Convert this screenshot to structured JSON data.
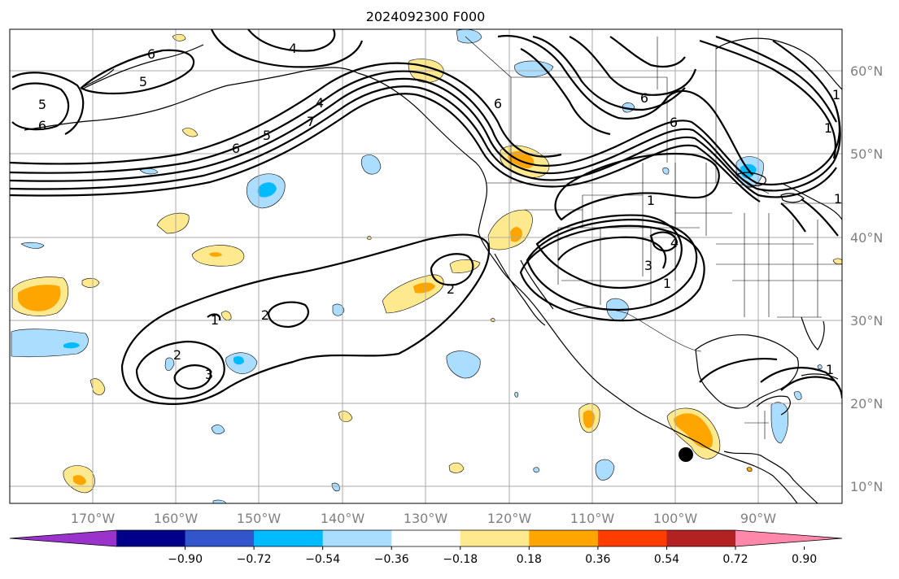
{
  "title": "2024092300 F000",
  "lat_labels": [
    "60°N",
    "50°N",
    "40°N",
    "30°N",
    "20°N",
    "10°N"
  ],
  "lon_labels": [
    "170°W",
    "160°W",
    "150°W",
    "140°W",
    "130°W",
    "120°W",
    "110°W",
    "100°W",
    "90°W"
  ],
  "colorbar": {
    "colors": [
      "#9933cc",
      "#000088",
      "#3355cc",
      "#00bbff",
      "#aaddff",
      "#ffffff",
      "#ffe98f",
      "#ffa500",
      "#ff3d00",
      "#b22222",
      "#ff88aa"
    ],
    "tick_labels": [
      "−0.90",
      "−0.72",
      "−0.54",
      "−0.36",
      "−0.18",
      "0.18",
      "0.36",
      "0.54",
      "0.72",
      "0.90"
    ]
  },
  "contour_labels": [
    "6",
    "5",
    "4",
    "6",
    "5",
    "6",
    "7",
    "6",
    "5",
    "4",
    "6",
    "6",
    "1",
    "1",
    "1",
    "1",
    "2",
    "2",
    "2",
    "3",
    "1",
    "4",
    "3",
    "1",
    "1"
  ],
  "storm_marker": "storm-center-icon"
}
